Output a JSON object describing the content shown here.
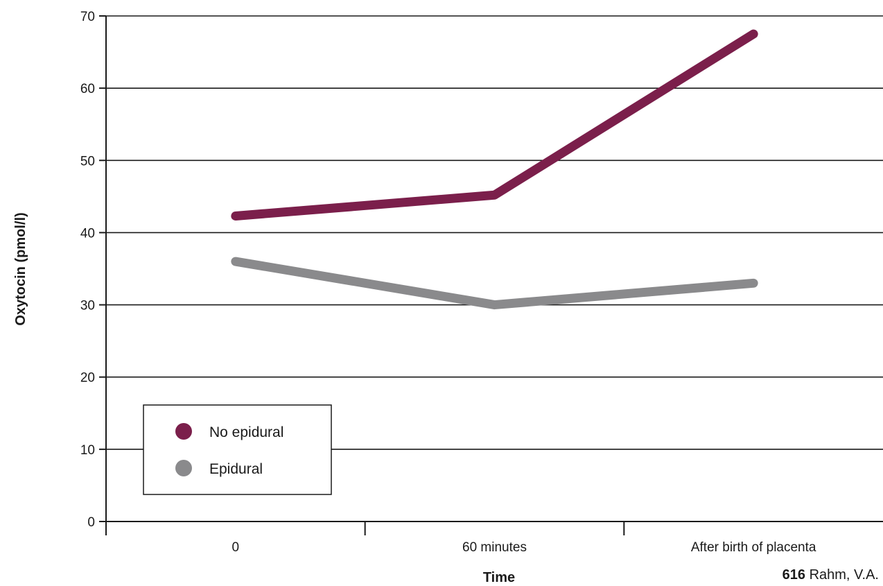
{
  "chart_data": {
    "type": "line",
    "title": "",
    "xlabel": "Time",
    "ylabel": "Oxytocin (pmol/l)",
    "categories": [
      "0",
      "60 minutes",
      "After birth of placenta"
    ],
    "series": [
      {
        "name": "No epidural",
        "values": [
          42.3,
          45.2,
          67.5
        ],
        "color": "#7b1f4b"
      },
      {
        "name": "Epidural",
        "values": [
          36.0,
          30.0,
          33.0
        ],
        "color": "#8a8a8c"
      }
    ],
    "ylim": [
      0,
      70
    ],
    "yticks": [
      0,
      10,
      20,
      30,
      40,
      50,
      60,
      70
    ],
    "grid": true,
    "legend_position": "bottom-left"
  },
  "citation": {
    "number": "616",
    "text": " Rahm, V.A."
  }
}
